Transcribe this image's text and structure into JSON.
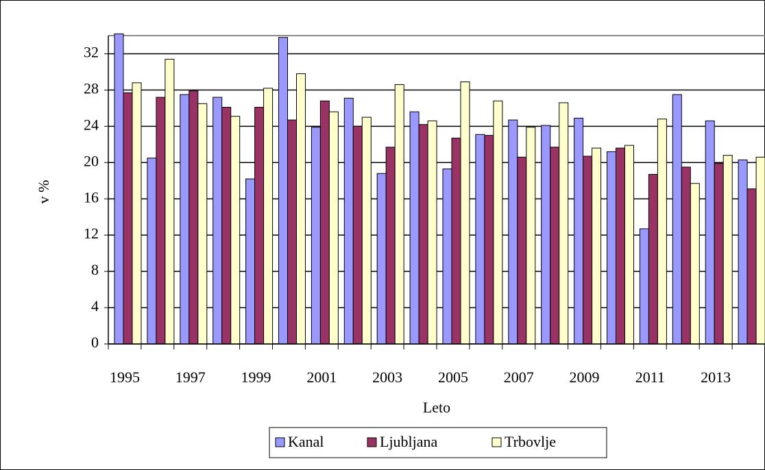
{
  "chart_data": {
    "type": "bar",
    "x_label": "Leto",
    "y_label": "v %",
    "categories": [
      "1995",
      null,
      "1997",
      null,
      "1999",
      null,
      "2001",
      null,
      "2003",
      null,
      "2005",
      null,
      "2007",
      null,
      "2009",
      null,
      "2011",
      null,
      "2013",
      null
    ],
    "series": [
      {
        "name": "Kanal",
        "color": "#9999ff",
        "values": [
          34.2,
          20.5,
          27.5,
          27.2,
          18.2,
          33.8,
          23.9,
          27.1,
          18.8,
          25.6,
          19.3,
          23.1,
          24.7,
          24.1,
          24.9,
          21.2,
          12.7,
          27.5,
          24.6,
          20.3
        ]
      },
      {
        "name": "Ljubljana",
        "color": "#993366",
        "values": [
          27.7,
          27.2,
          27.9,
          26.1,
          26.1,
          24.7,
          26.8,
          24.0,
          21.7,
          24.2,
          22.7,
          23.0,
          20.6,
          21.7,
          20.7,
          21.6,
          18.7,
          19.5,
          19.9,
          17.1
        ]
      },
      {
        "name": "Trbovlje",
        "color": "#ffffcc",
        "values": [
          28.8,
          31.4,
          26.5,
          25.1,
          28.2,
          29.8,
          25.6,
          25.0,
          28.6,
          24.6,
          28.9,
          26.8,
          23.9,
          26.6,
          21.6,
          21.9,
          24.8,
          17.7,
          20.8,
          20.6
        ]
      }
    ],
    "ylim": [
      0,
      34
    ],
    "yticks": [
      0,
      4,
      8,
      12,
      16,
      20,
      24,
      28,
      32
    ],
    "grid": true,
    "legend": "bottom"
  }
}
